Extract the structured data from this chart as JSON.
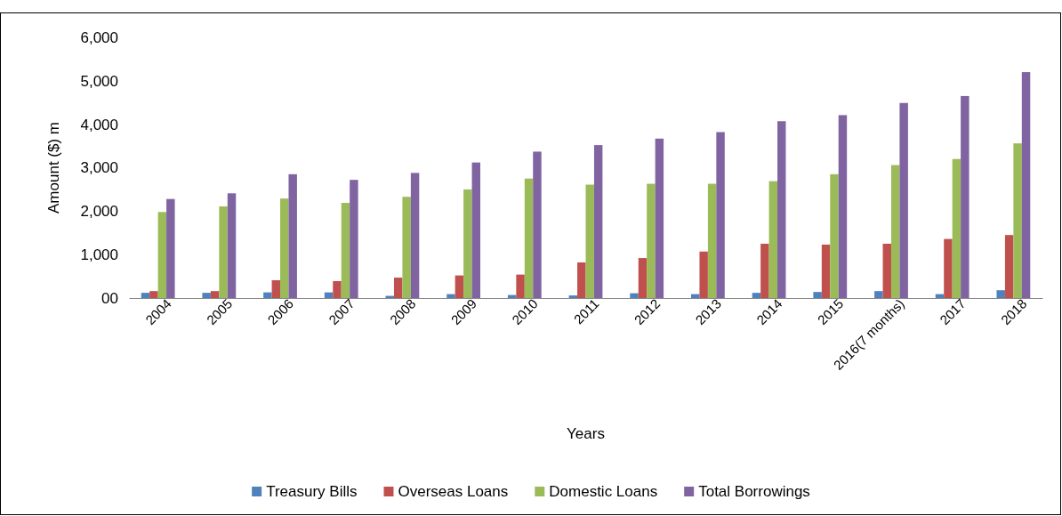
{
  "chart_data": {
    "type": "bar",
    "xlabel": "Years",
    "ylabel": "Amount ($) m",
    "categories": [
      "2004",
      "2005",
      "2006",
      "2007",
      "2008",
      "2009",
      "2010",
      "2011",
      "2012",
      "2013",
      "2014",
      "2015",
      "2016(7 months)",
      "2017",
      "2018"
    ],
    "series": [
      {
        "name": "Treasury Bills",
        "color": "#4f81bd",
        "values": [
          120,
          120,
          130,
          130,
          50,
          90,
          70,
          60,
          110,
          90,
          120,
          140,
          160,
          90,
          180
        ]
      },
      {
        "name": "Overseas Loans",
        "color": "#c0504d",
        "values": [
          160,
          160,
          410,
          390,
          470,
          520,
          540,
          820,
          920,
          1070,
          1250,
          1230,
          1250,
          1360,
          1450
        ]
      },
      {
        "name": "Domestic Loans",
        "color": "#9bbb59",
        "values": [
          1980,
          2110,
          2290,
          2190,
          2330,
          2500,
          2750,
          2610,
          2630,
          2630,
          2690,
          2850,
          3060,
          3200,
          3560
        ]
      },
      {
        "name": "Total Borrowings",
        "color": "#8064a2",
        "values": [
          2280,
          2410,
          2850,
          2720,
          2880,
          3120,
          3370,
          3520,
          3670,
          3820,
          4070,
          4210,
          4490,
          4650,
          5200
        ]
      }
    ],
    "ylim": [
      0,
      6000
    ],
    "yticks": [
      {
        "value": 0,
        "label": "00"
      },
      {
        "value": 1000,
        "label": "1,000"
      },
      {
        "value": 2000,
        "label": "2,000"
      },
      {
        "value": 3000,
        "label": "3,000"
      },
      {
        "value": 4000,
        "label": "4,000"
      },
      {
        "value": 5000,
        "label": "5,000"
      },
      {
        "value": 6000,
        "label": "6,000"
      }
    ],
    "grid": false,
    "legend": "bottom"
  }
}
